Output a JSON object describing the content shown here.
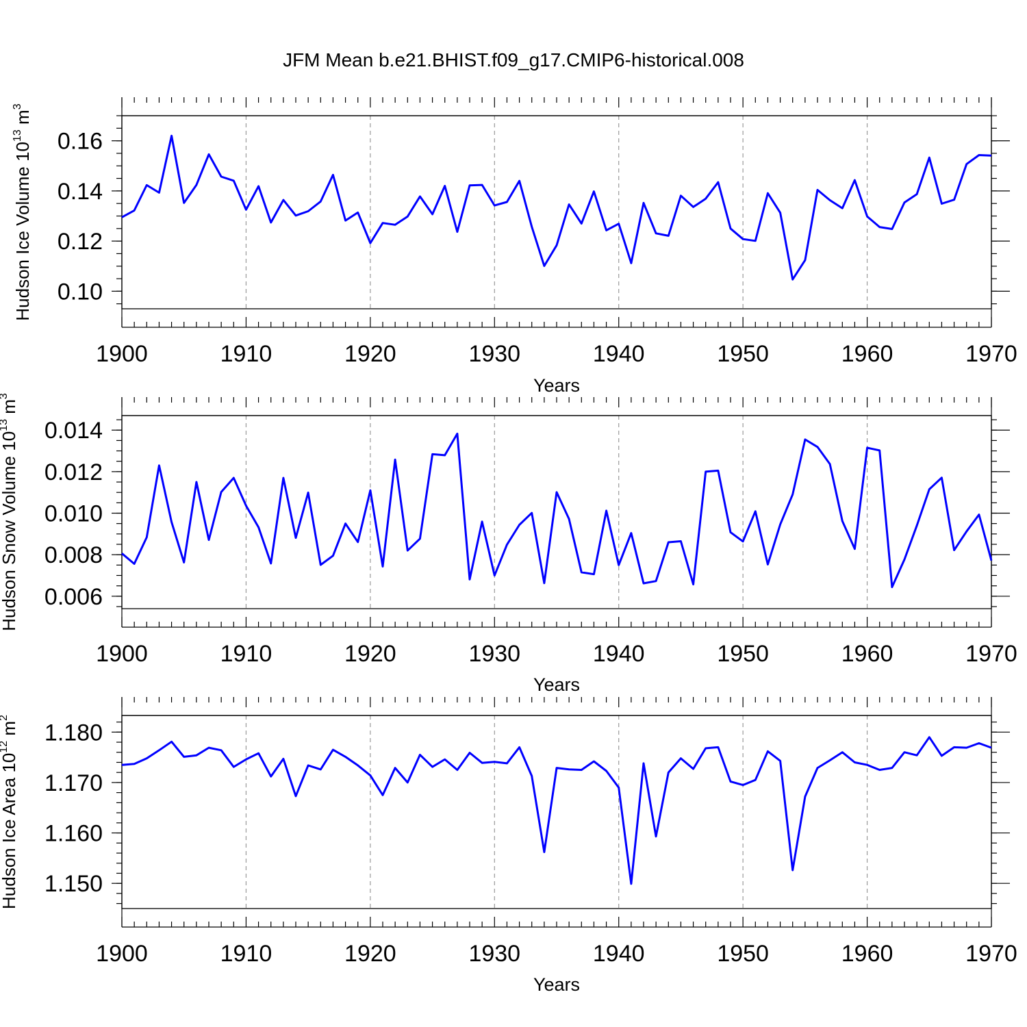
{
  "chart_data": {
    "title": "JFM Mean b.e21.BHIST.f09_g17.CMIP6-historical.008",
    "panels": [
      {
        "type": "line",
        "ylabel": "Hudson Ice Volume 10",
        "ylabel_exp": "13",
        "ylabel_unit": " m",
        "ylabel_unit_exp": "3",
        "xlabel": "Years",
        "xlim": [
          1900,
          1970
        ],
        "ylim": [
          0.093,
          0.17
        ],
        "yticks": [
          0.1,
          0.12,
          0.14,
          0.16
        ],
        "ytick_labels": [
          "0.10",
          "0.12",
          "0.14",
          "0.16"
        ],
        "yminor_step": 0.005,
        "xticks": [
          1900,
          1910,
          1920,
          1930,
          1940,
          1950,
          1960,
          1970
        ],
        "xtick_labels": [
          "1900",
          "1910",
          "1920",
          "1930",
          "1940",
          "1950",
          "1960",
          "1970"
        ],
        "grid": "vertical dashed at decades",
        "color": "#0000ff",
        "x_start": 1900,
        "values": [
          0.1295,
          0.1322,
          0.1423,
          0.1393,
          0.162,
          0.1352,
          0.1424,
          0.1546,
          0.1457,
          0.1441,
          0.1325,
          0.1419,
          0.1274,
          0.1364,
          0.1302,
          0.1319,
          0.1358,
          0.1464,
          0.1282,
          0.1314,
          0.1192,
          0.1272,
          0.1265,
          0.1298,
          0.1378,
          0.1307,
          0.142,
          0.1237,
          0.1422,
          0.1424,
          0.1342,
          0.1356,
          0.144,
          0.1257,
          0.1101,
          0.1183,
          0.1346,
          0.127,
          0.1398,
          0.1243,
          0.1269,
          0.1112,
          0.1352,
          0.1231,
          0.1221,
          0.1381,
          0.1336,
          0.1369,
          0.1435,
          0.125,
          0.1208,
          0.1201,
          0.1391,
          0.1313,
          0.1047,
          0.1124,
          0.1404,
          0.1363,
          0.1331,
          0.1443,
          0.1298,
          0.1256,
          0.1248,
          0.1354,
          0.1387,
          0.1533,
          0.1349,
          0.1365,
          0.1507,
          0.1543,
          0.1541
        ]
      },
      {
        "type": "line",
        "ylabel": "Hudson Snow Volume 10",
        "ylabel_exp": "13",
        "ylabel_unit": " m",
        "ylabel_unit_exp": "3",
        "xlabel": "Years",
        "xlim": [
          1900,
          1970
        ],
        "ylim": [
          0.0054,
          0.0147
        ],
        "yticks": [
          0.006,
          0.008,
          0.01,
          0.012,
          0.014
        ],
        "ytick_labels": [
          "0.006",
          "0.008",
          "0.010",
          "0.012",
          "0.014"
        ],
        "yminor_step": 0.0005,
        "xticks": [
          1900,
          1910,
          1920,
          1930,
          1940,
          1950,
          1960,
          1970
        ],
        "xtick_labels": [
          "1900",
          "1910",
          "1920",
          "1930",
          "1940",
          "1950",
          "1960",
          "1970"
        ],
        "grid": "vertical dashed at decades",
        "color": "#0000ff",
        "x_start": 1900,
        "values": [
          0.00806,
          0.00756,
          0.00884,
          0.0123,
          0.00957,
          0.00763,
          0.0115,
          0.00871,
          0.01102,
          0.0117,
          0.01036,
          0.00932,
          0.00758,
          0.0117,
          0.00881,
          0.01099,
          0.00751,
          0.00795,
          0.0095,
          0.00861,
          0.0111,
          0.00743,
          0.01258,
          0.0082,
          0.00877,
          0.01284,
          0.01279,
          0.01383,
          0.00681,
          0.00959,
          0.007,
          0.00848,
          0.00944,
          0.01001,
          0.00663,
          0.01101,
          0.00972,
          0.00715,
          0.00706,
          0.01012,
          0.0075,
          0.00904,
          0.00662,
          0.00673,
          0.0086,
          0.00865,
          0.00657,
          0.012,
          0.01205,
          0.00908,
          0.00864,
          0.01009,
          0.00753,
          0.00946,
          0.0109,
          0.01355,
          0.01319,
          0.01237,
          0.00962,
          0.00828,
          0.01315,
          0.01302,
          0.00644,
          0.00777,
          0.0094,
          0.01115,
          0.01171,
          0.00822,
          0.00912,
          0.00993,
          0.00772
        ]
      },
      {
        "type": "line",
        "ylabel": "Hudson Ice Area 10",
        "ylabel_exp": "12",
        "ylabel_unit": " m",
        "ylabel_unit_exp": "2",
        "xlabel": "Years",
        "xlim": [
          1900,
          1970
        ],
        "ylim": [
          1.145,
          1.1833
        ],
        "yticks": [
          1.15,
          1.16,
          1.17,
          1.18
        ],
        "ytick_labels": [
          "1.150",
          "1.160",
          "1.170",
          "1.180"
        ],
        "yminor_step": 0.002,
        "xticks": [
          1900,
          1910,
          1920,
          1930,
          1940,
          1950,
          1960,
          1970
        ],
        "xtick_labels": [
          "1900",
          "1910",
          "1920",
          "1930",
          "1940",
          "1950",
          "1960",
          "1970"
        ],
        "grid": "vertical dashed at decades",
        "color": "#0000ff",
        "x_start": 1900,
        "values": [
          1.1735,
          1.1737,
          1.1748,
          1.1764,
          1.1781,
          1.1751,
          1.1754,
          1.1769,
          1.1764,
          1.1731,
          1.1746,
          1.1758,
          1.1712,
          1.1747,
          1.1673,
          1.1734,
          1.1726,
          1.1765,
          1.1751,
          1.1734,
          1.1714,
          1.1675,
          1.1729,
          1.17,
          1.1755,
          1.1731,
          1.1746,
          1.1725,
          1.1759,
          1.1739,
          1.1741,
          1.1738,
          1.177,
          1.1713,
          1.1562,
          1.1729,
          1.1726,
          1.1725,
          1.1742,
          1.1723,
          1.169,
          1.1499,
          1.1738,
          1.1593,
          1.172,
          1.1748,
          1.1727,
          1.1768,
          1.177,
          1.1702,
          1.1695,
          1.1705,
          1.1762,
          1.1743,
          1.1526,
          1.1672,
          1.1729,
          1.1744,
          1.176,
          1.174,
          1.1735,
          1.1725,
          1.1729,
          1.176,
          1.1754,
          1.179,
          1.1753,
          1.177,
          1.1769,
          1.1778,
          1.1769
        ]
      }
    ]
  }
}
